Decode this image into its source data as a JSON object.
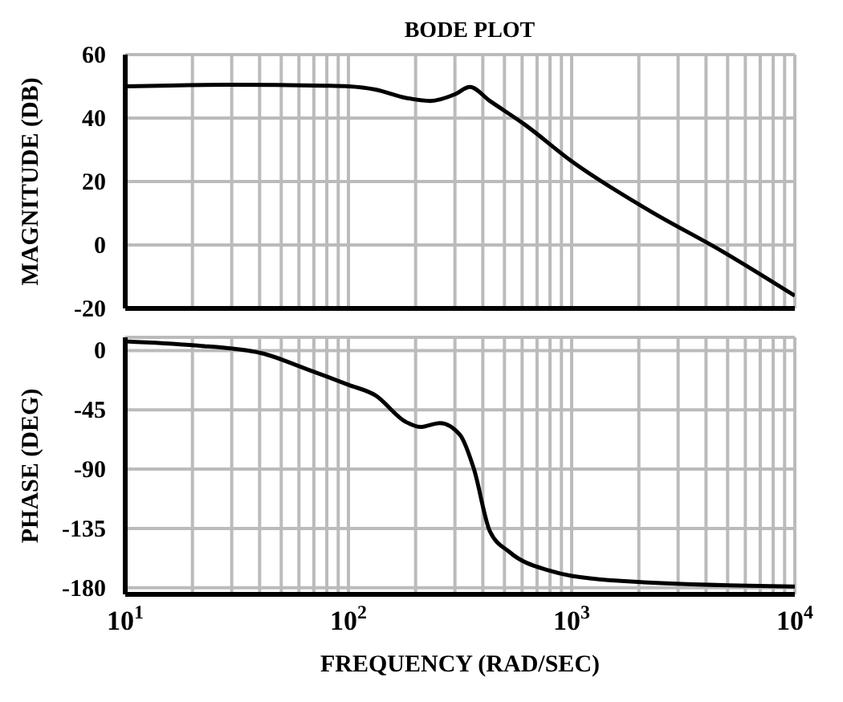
{
  "chart_data": [
    {
      "type": "line",
      "title": "BODE PLOT",
      "ylabel": "MAGNITUDE (DB)",
      "log": "x",
      "grid": true,
      "tick_labels": "y",
      "marker": "none",
      "line_style": "solid",
      "xlim": [
        10,
        10000
      ],
      "ylim": [
        -20,
        60
      ],
      "yticks": [
        -20,
        0,
        20,
        40,
        60
      ],
      "xticks": [
        {
          "value": 10,
          "label": null
        },
        {
          "value": 20,
          "label": null
        },
        {
          "value": 30,
          "label": null
        },
        {
          "value": 40,
          "label": null
        },
        {
          "value": 50,
          "label": null
        },
        {
          "value": 60,
          "label": null
        },
        {
          "value": 70,
          "label": null
        },
        {
          "value": 80,
          "label": null
        },
        {
          "value": 90,
          "label": null
        },
        {
          "value": 100,
          "label": null
        },
        {
          "value": 200,
          "label": null
        },
        {
          "value": 300,
          "label": null
        },
        {
          "value": 400,
          "label": null
        },
        {
          "value": 500,
          "label": null
        },
        {
          "value": 600,
          "label": null
        },
        {
          "value": 700,
          "label": null
        },
        {
          "value": 800,
          "label": null
        },
        {
          "value": 900,
          "label": null
        },
        {
          "value": 1000,
          "label": null
        },
        {
          "value": 2000,
          "label": null
        },
        {
          "value": 3000,
          "label": null
        },
        {
          "value": 4000,
          "label": null
        },
        {
          "value": 5000,
          "label": null
        },
        {
          "value": 6000,
          "label": null
        },
        {
          "value": 7000,
          "label": null
        },
        {
          "value": 8000,
          "label": null
        },
        {
          "value": 9000,
          "label": null
        },
        {
          "value": 10000,
          "label": null
        }
      ],
      "series": [
        {
          "color": "#000000",
          "x": [
            10,
            28.5,
            79,
            100,
            132,
            180,
            233,
            300,
            350,
            430,
            615,
            1000,
            2210,
            4760,
            10000
          ],
          "values": [
            50,
            50.5,
            50.2,
            50,
            49,
            46.4,
            45.4,
            47.5,
            49.8,
            45.4,
            38,
            26.4,
            11,
            -2.1,
            -16
          ]
        }
      ]
    },
    {
      "type": "line",
      "ylabel": "PHASE (DEG)",
      "xlabel": "FREQUENCY (RAD/SEC)",
      "log": "x",
      "grid": true,
      "marker": "none",
      "line_style": "solid",
      "xlim": [
        10,
        10000
      ],
      "ylim": [
        -185,
        10
      ],
      "yticks": [
        -180,
        -135,
        -90,
        -45,
        0
      ],
      "xticks": [
        {
          "value": 10,
          "label": "10$^{1}$"
        },
        {
          "value": 20,
          "label": null
        },
        {
          "value": 30,
          "label": null
        },
        {
          "value": 40,
          "label": null
        },
        {
          "value": 50,
          "label": null
        },
        {
          "value": 60,
          "label": null
        },
        {
          "value": 70,
          "label": null
        },
        {
          "value": 80,
          "label": null
        },
        {
          "value": 90,
          "label": null
        },
        {
          "value": 100,
          "label": "10$^{2}$"
        },
        {
          "value": 200,
          "label": null
        },
        {
          "value": 300,
          "label": null
        },
        {
          "value": 400,
          "label": null
        },
        {
          "value": 500,
          "label": null
        },
        {
          "value": 600,
          "label": null
        },
        {
          "value": 700,
          "label": null
        },
        {
          "value": 800,
          "label": null
        },
        {
          "value": 900,
          "label": null
        },
        {
          "value": 1000,
          "label": "10$^{3}$"
        },
        {
          "value": 2000,
          "label": null
        },
        {
          "value": 3000,
          "label": null
        },
        {
          "value": 4000,
          "label": null
        },
        {
          "value": 5000,
          "label": null
        },
        {
          "value": 6000,
          "label": null
        },
        {
          "value": 7000,
          "label": null
        },
        {
          "value": 8000,
          "label": null
        },
        {
          "value": 9000,
          "label": null
        },
        {
          "value": 10000,
          "label": "10$^{4}$"
        }
      ],
      "series": [
        {
          "color": "#000000",
          "x": [
            10,
            20,
            40.8,
            64.7,
            100,
            132,
            180,
            210,
            257,
            316,
            365,
            430,
            528,
            795,
            1000,
            2210,
            10000
          ],
          "values": [
            7,
            4,
            -2,
            -14,
            -26,
            -34,
            -54,
            -58,
            -55,
            -64,
            -90,
            -137,
            -153,
            -167,
            -171,
            -176,
            -179
          ]
        }
      ]
    }
  ]
}
